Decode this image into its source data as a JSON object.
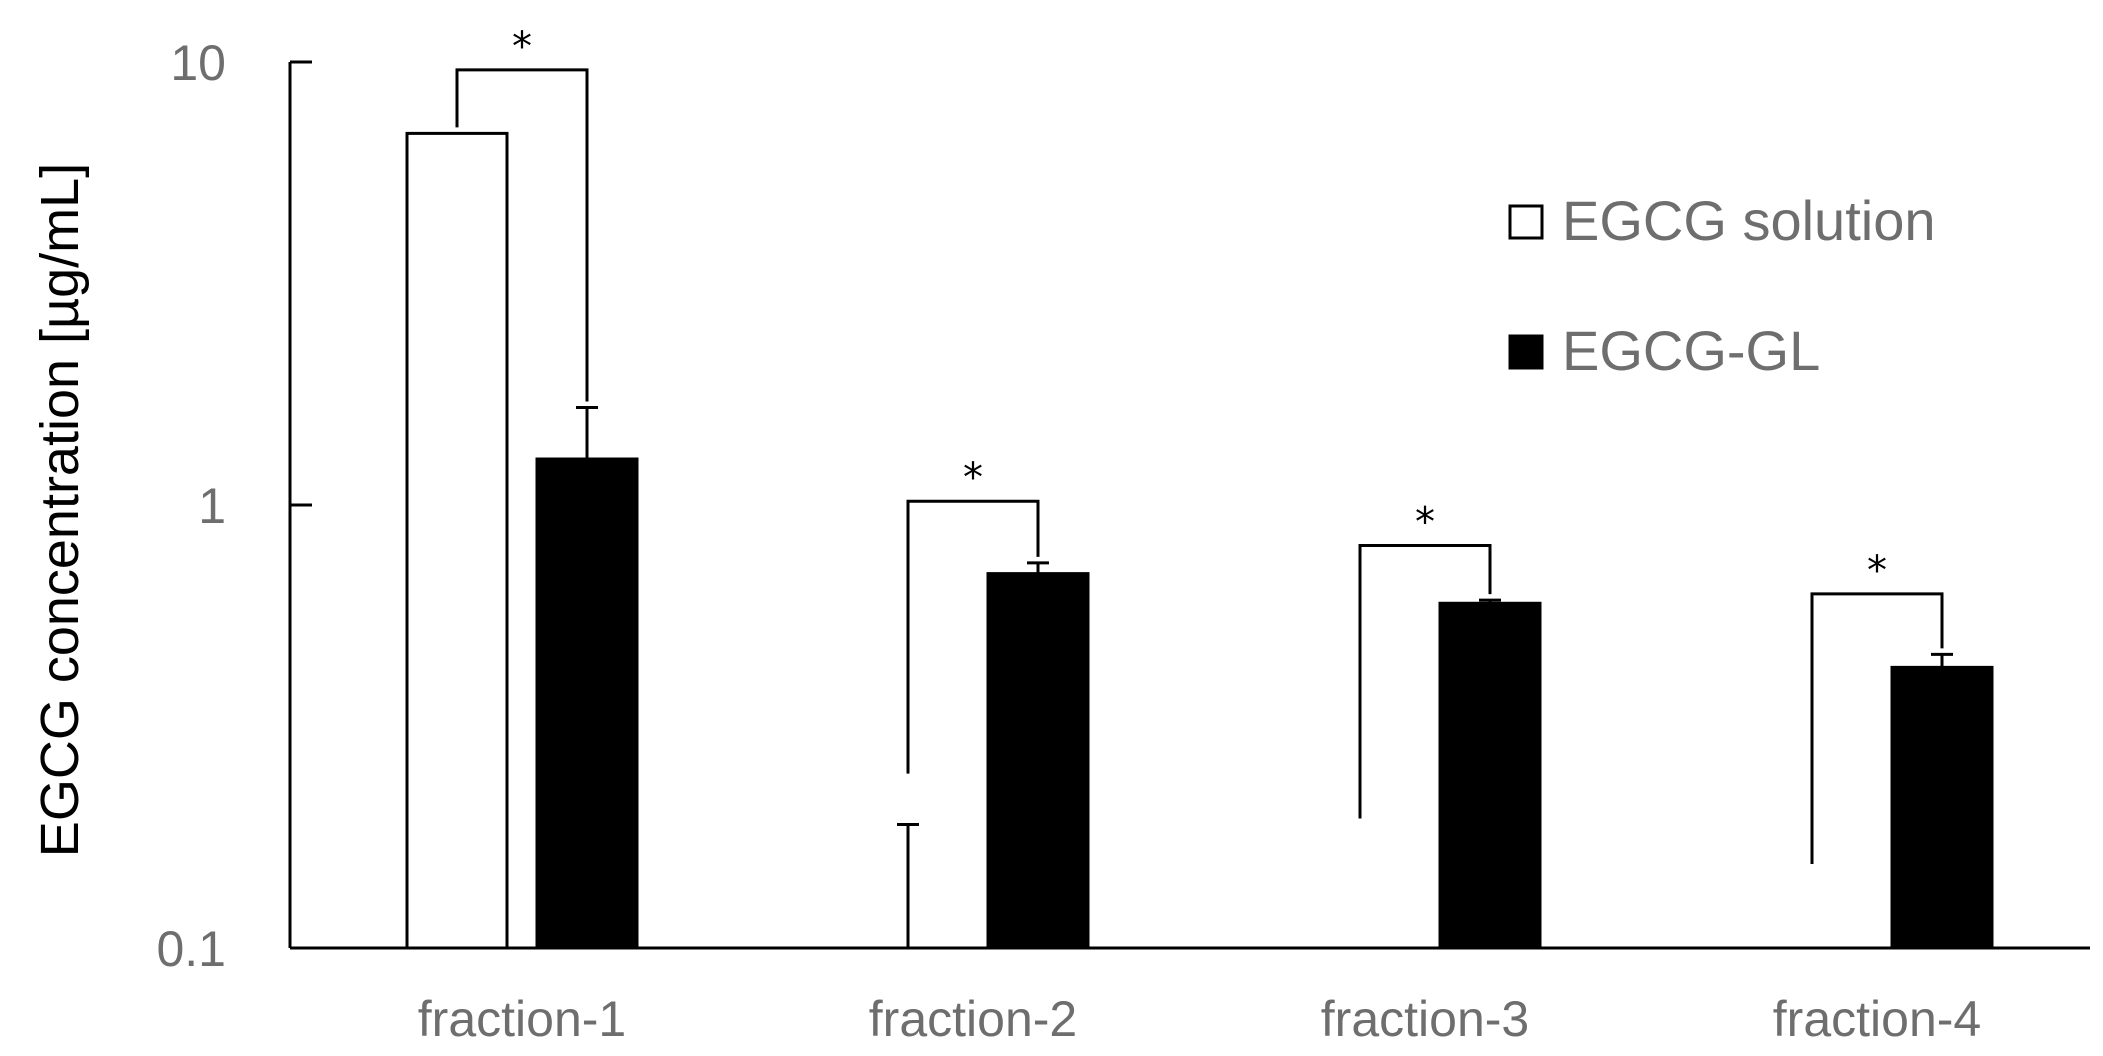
{
  "chart_data": {
    "type": "bar",
    "title": "",
    "xlabel": "",
    "ylabel": "EGCG concentration [µg/mL]",
    "yscale": "log",
    "ylim": [
      0.1,
      10
    ],
    "yticks": [
      {
        "value": 0.1,
        "label": "0.1"
      },
      {
        "value": 1,
        "label": "1"
      },
      {
        "value": 10,
        "label": "10"
      }
    ],
    "categories": [
      "fraction-1",
      "fraction-2",
      "fraction-3",
      "fraction-4"
    ],
    "series": [
      {
        "name": "EGCG solution",
        "fill": "#ffffff",
        "values": [
          6.9,
          0.1,
          0.1,
          0.1
        ],
        "error_upper": [
          6.9,
          0.19,
          null,
          null
        ]
      },
      {
        "name": "EGCG-GL",
        "fill": "#000000",
        "values": [
          1.27,
          0.7,
          0.6,
          0.43
        ],
        "error_upper": [
          1.66,
          0.74,
          0.61,
          0.46
        ]
      }
    ],
    "significance": [
      {
        "category": "fraction-1",
        "marker": "*",
        "left_y": 6.9,
        "right_y": 1.66,
        "bracket_y": 9.6
      },
      {
        "category": "fraction-2",
        "marker": "*",
        "left_y": 0.24,
        "right_y": 0.74,
        "bracket_y": 1.02
      },
      {
        "category": "fraction-3",
        "marker": "*",
        "left_y": 0.19,
        "right_y": 0.61,
        "bracket_y": 0.81
      },
      {
        "category": "fraction-4",
        "marker": "*",
        "left_y": 0.15,
        "right_y": 0.46,
        "bracket_y": 0.63
      }
    ],
    "legend_position": "top-right",
    "grid": false
  }
}
